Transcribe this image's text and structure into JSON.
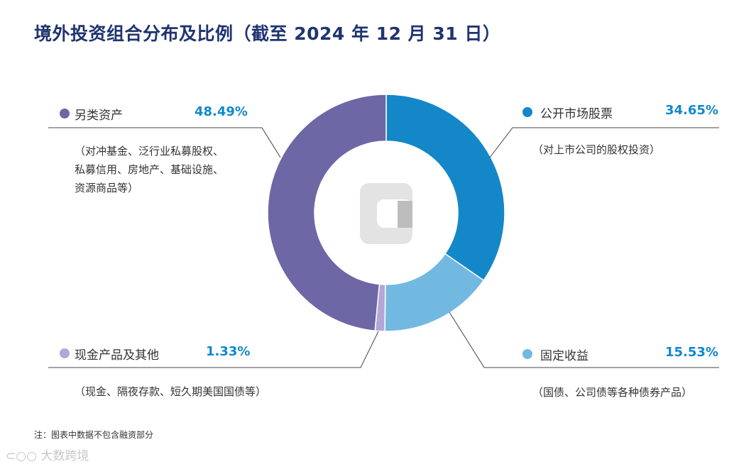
{
  "chart_data": {
    "type": "pie",
    "title": "境外投资组合分布及比例（截至 2024 年 12 月 31 日）",
    "series": [
      {
        "name": "公开市场股票",
        "value": 34.65,
        "value_label": "34.65%",
        "color": "#1487c9",
        "description": "（对上市公司的股权投资）"
      },
      {
        "name": "固定收益",
        "value": 15.53,
        "value_label": "15.53%",
        "color": "#72b9e2",
        "description": "（国债、公司债等各种债券产品）"
      },
      {
        "name": "现金产品及其他",
        "value": 1.33,
        "value_label": "1.33%",
        "color": "#b4a6d6",
        "description": "（现金、隔夜存款、短久期美国国债等）"
      },
      {
        "name": "另类资产",
        "value": 48.49,
        "value_label": "48.49%",
        "color": "#6d67a5",
        "description_lines": [
          "（对冲基金、泛行业私募股权、",
          "私募信用、房地产、基础设施、",
          "资源商品等）"
        ]
      }
    ],
    "note": "注：图表中数据不包含融资部分"
  },
  "watermark": "大数跨境"
}
